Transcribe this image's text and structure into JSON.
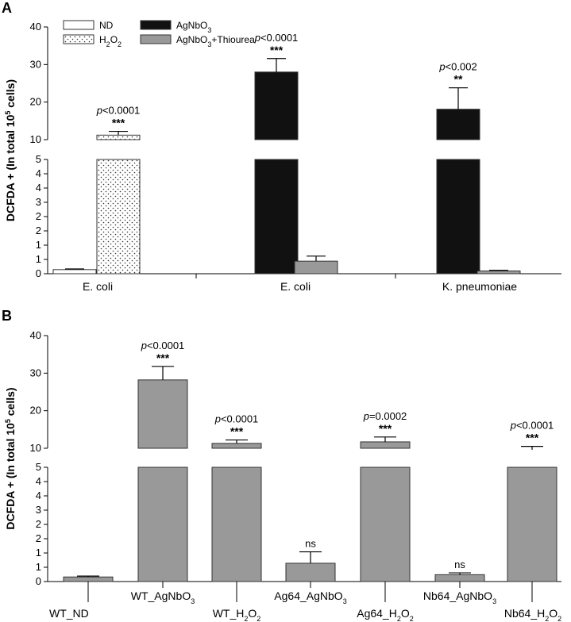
{
  "chart_data": [
    {
      "type": "bar",
      "panel_label": "A",
      "ylabel": "DCFDA + (In total 10⁵ cells)",
      "ylabel_parts": [
        "DCFDA + (In total 10",
        "5",
        " cells)"
      ],
      "y_axis": "broken",
      "y_ticks_lower": [
        "0",
        "1",
        "1",
        "2",
        "2",
        "3",
        "4",
        "4",
        "5"
      ],
      "y_ticks_upper": [
        "10",
        "20",
        "30",
        "40"
      ],
      "ylim_lower": [
        0,
        5
      ],
      "ylim_upper": [
        10,
        40
      ],
      "legend": [
        {
          "key": "ND",
          "label": "ND",
          "fill": "#ffffff",
          "pattern": "none"
        },
        {
          "key": "H2O2",
          "label": "H₂O₂",
          "base": "H",
          "sub": "2",
          "rest": "O",
          "sub2": "2",
          "fill": "#ffffff",
          "pattern": "dots"
        },
        {
          "key": "AgNbO3",
          "label": "AgNbO₃",
          "base": "AgNbO",
          "sub": "3",
          "fill": "#111111",
          "pattern": "none"
        },
        {
          "key": "AgNbO3_Thiourea",
          "label": "AgNbO₃+Thiourea",
          "base": "AgNbO",
          "sub": "3",
          "rest": "+Thiourea",
          "fill": "#999999",
          "pattern": "none"
        }
      ],
      "groups": [
        "E. coli",
        "E. coli",
        "K. pneumoniae"
      ],
      "bars": [
        {
          "group": 0,
          "series": "ND",
          "value": 0.18,
          "error": 0.03,
          "fill": "#ffffff",
          "pattern": "none",
          "p_text": "",
          "stars": ""
        },
        {
          "group": 0,
          "series": "H2O2",
          "value": 11.2,
          "error": 1.0,
          "fill": "#ffffff",
          "pattern": "dots",
          "p_text": "p<0.0001",
          "p_italic": "p",
          "p_rest": "<0.0001",
          "stars": "***"
        },
        {
          "group": 1,
          "series": "AgNbO3",
          "value": 28.0,
          "error": 3.6,
          "fill": "#111111",
          "pattern": "none",
          "p_text": "p<0.0001",
          "p_italic": "p",
          "p_rest": "<0.0001",
          "stars": "***"
        },
        {
          "group": 1,
          "series": "AgNbO3_Thiourea",
          "value": 0.55,
          "error": 0.22,
          "fill": "#999999",
          "pattern": "none",
          "p_text": "",
          "stars": ""
        },
        {
          "group": 2,
          "series": "AgNbO3",
          "value": 18.1,
          "error": 5.7,
          "fill": "#111111",
          "pattern": "none",
          "p_text": "p<0.002",
          "p_italic": "p",
          "p_rest": "<0.002",
          "stars": "**"
        },
        {
          "group": 2,
          "series": "AgNbO3_Thiourea",
          "value": 0.12,
          "error": 0.03,
          "fill": "#999999",
          "pattern": "none",
          "p_text": "",
          "stars": ""
        }
      ]
    },
    {
      "type": "bar",
      "panel_label": "B",
      "ylabel": "DCFDA + (In total 10⁵ cells)",
      "ylabel_parts": [
        "DCFDA + (In total 10",
        "5",
        " cells)"
      ],
      "y_axis": "broken",
      "y_ticks_lower": [
        "0",
        "1",
        "1",
        "2",
        "2",
        "3",
        "4",
        "4",
        "5"
      ],
      "y_ticks_upper": [
        "10",
        "20",
        "30",
        "40"
      ],
      "ylim_lower": [
        0,
        5
      ],
      "ylim_upper": [
        10,
        40
      ],
      "categories": [
        "WT_ND",
        "WT_AgNbO3",
        "WT_H2O2",
        "Ag64_AgNbO3",
        "Ag64_H2O2",
        "Nb64_AgNbO3",
        "Nb64_H2O2"
      ],
      "category_labels": [
        {
          "base": "WT_ND",
          "sub": "",
          "rest": ""
        },
        {
          "base": "WT_AgNbO",
          "sub": "3",
          "rest": ""
        },
        {
          "base": "WT_H",
          "sub": "2",
          "rest": "O",
          "sub2": "2"
        },
        {
          "base": "Ag64_AgNbO",
          "sub": "3",
          "rest": ""
        },
        {
          "base": "Ag64_H",
          "sub": "2",
          "rest": "O",
          "sub2": "2"
        },
        {
          "base": "Nb64_AgNbO",
          "sub": "3",
          "rest": ""
        },
        {
          "base": "Nb64_H",
          "sub": "2",
          "rest": "O",
          "sub2": "2"
        }
      ],
      "values": [
        0.2,
        28.2,
        11.3,
        0.8,
        11.7,
        0.3,
        9.6
      ],
      "errors": [
        0.04,
        3.6,
        0.9,
        0.5,
        1.3,
        0.08,
        0.9
      ],
      "fill": "#999999",
      "annotations": [
        {
          "p_text": "",
          "stars": ""
        },
        {
          "p_text": "p<0.0001",
          "p_italic": "p",
          "p_rest": "<0.0001",
          "stars": "***"
        },
        {
          "p_text": "p<0.0001",
          "p_italic": "p",
          "p_rest": "<0.0001",
          "stars": "***"
        },
        {
          "p_text": "",
          "stars": "ns"
        },
        {
          "p_text": "p=0.0002",
          "p_italic": "p",
          "p_rest": "=0.0002",
          "stars": "***"
        },
        {
          "p_text": "",
          "stars": "ns"
        },
        {
          "p_text": "p<0.0001",
          "p_italic": "p",
          "p_rest": "<0.0001",
          "stars": "***"
        }
      ]
    }
  ]
}
